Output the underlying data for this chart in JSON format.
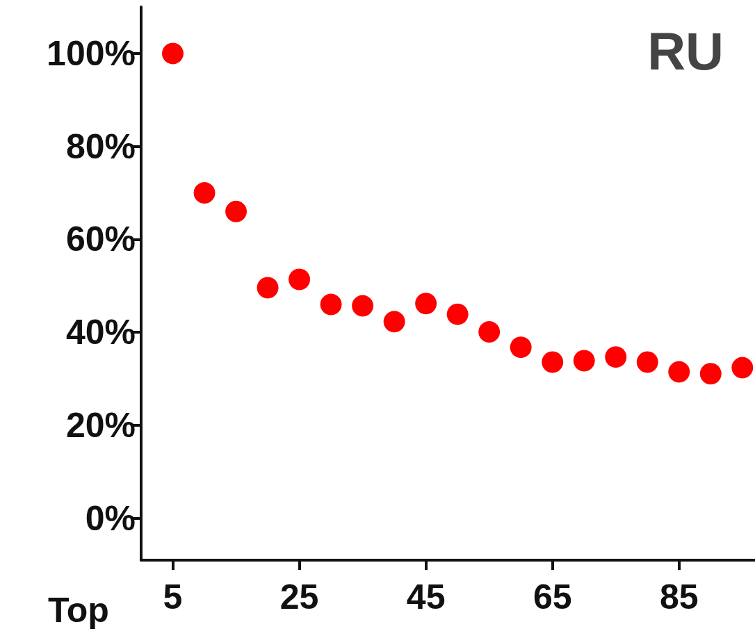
{
  "chart_data": {
    "type": "scatter",
    "title": "RU",
    "xlabel": "Top",
    "x": [
      5,
      10,
      15,
      20,
      25,
      30,
      35,
      40,
      45,
      50,
      55,
      60,
      65,
      70,
      75,
      80,
      85,
      90,
      95
    ],
    "values": [
      100,
      70,
      66,
      49.6,
      51.4,
      46,
      45.7,
      42.3,
      46.2,
      43.9,
      40.1,
      36.8,
      33.6,
      33.9,
      34.7,
      33.6,
      31.5,
      31.1,
      32.4
    ],
    "color": "#ff0000",
    "marker": "circle",
    "xlim": [
      0,
      97
    ],
    "xticks": [
      5,
      25,
      45,
      65,
      85
    ],
    "ylim": [
      -9,
      110
    ],
    "yticks": [
      {
        "value": 0,
        "label": "0%"
      },
      {
        "value": 20,
        "label": "20%"
      },
      {
        "value": 40,
        "label": "40%"
      },
      {
        "value": 60,
        "label": "60%"
      },
      {
        "value": 80,
        "label": "80%"
      },
      {
        "value": 100,
        "label": "100%"
      }
    ],
    "grid": false
  }
}
